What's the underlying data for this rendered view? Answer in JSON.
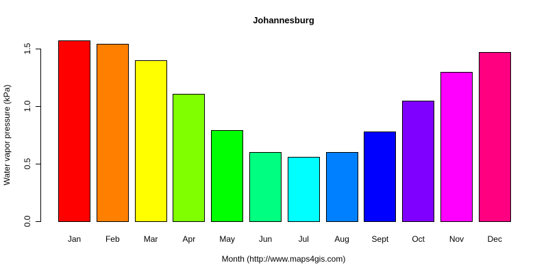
{
  "chart_data": {
    "type": "bar",
    "title": "Johannesburg",
    "xlabel": "Month (http://www.maps4gis.com)",
    "ylabel": "Water vapor pressure (kPa)",
    "ylim": [
      0,
      1.6
    ],
    "yticks": [
      "0.0",
      "0.5",
      "1.0",
      "1.5"
    ],
    "grid": false,
    "legend": null,
    "categories": [
      "Jan",
      "Feb",
      "Mar",
      "Apr",
      "May",
      "Jun",
      "Jul",
      "Aug",
      "Sept",
      "Oct",
      "Nov",
      "Dec"
    ],
    "values": [
      1.57,
      1.54,
      1.4,
      1.11,
      0.79,
      0.6,
      0.56,
      0.6,
      0.78,
      1.05,
      1.3,
      1.47
    ],
    "colors": [
      "#FF0000",
      "#FF8000",
      "#FFFF00",
      "#80FF00",
      "#00FF00",
      "#00FF80",
      "#00FFFF",
      "#0080FF",
      "#0000FF",
      "#8000FF",
      "#FF00FF",
      "#FF0080"
    ]
  }
}
